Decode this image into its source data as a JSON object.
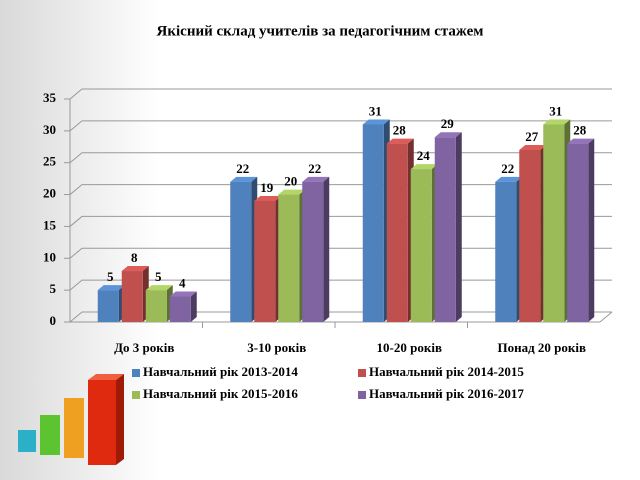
{
  "chart_data": {
    "type": "bar",
    "title": "Якісний склад учителів за педагогічним стажем",
    "categories": [
      "До 3 років",
      "3-10 років",
      "10-20 років",
      "Понад 20 років"
    ],
    "series": [
      {
        "name": "Навчальний рік 2013-2014",
        "color": "#4f81bd",
        "values": [
          5,
          22,
          31,
          22
        ]
      },
      {
        "name": "Навчальний рік 2014-2015",
        "color": "#c0504d",
        "values": [
          8,
          19,
          28,
          27
        ]
      },
      {
        "name": "Навчальний рік 2015-2016",
        "color": "#9bbb59",
        "values": [
          5,
          20,
          24,
          31
        ]
      },
      {
        "name": "Навчальний рік 2016-2017",
        "color": "#8064a2",
        "values": [
          4,
          22,
          29,
          28
        ]
      }
    ],
    "ylim": [
      0,
      35
    ],
    "yticks": [
      0,
      5,
      10,
      15,
      20,
      25,
      30,
      35
    ],
    "grid": true,
    "legend": "bottom"
  }
}
